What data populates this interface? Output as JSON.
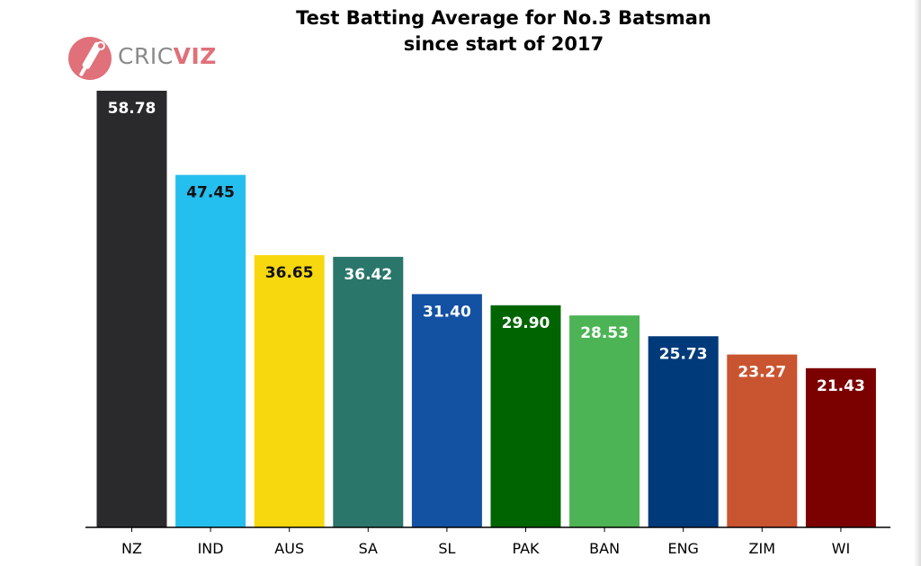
{
  "chart_data": {
    "type": "bar",
    "title": "Test Batting Average for No.3 Batsman",
    "subtitle": "since start of 2017",
    "categories": [
      "NZ",
      "IND",
      "AUS",
      "SA",
      "SL",
      "PAK",
      "BAN",
      "ENG",
      "ZIM",
      "WI"
    ],
    "values": [
      58.78,
      47.45,
      36.65,
      36.42,
      31.4,
      29.9,
      28.53,
      25.73,
      23.27,
      21.43
    ],
    "value_labels": [
      "58.78",
      "47.45",
      "36.65",
      "36.42",
      "31.40",
      "29.90",
      "28.53",
      "25.73",
      "23.27",
      "21.43"
    ],
    "colors": [
      "#2a2a2c",
      "#25bfef",
      "#f7d80f",
      "#2a766b",
      "#1351a3",
      "#006400",
      "#4cb454",
      "#003a7a",
      "#c95430",
      "#7b0000"
    ],
    "label_colors": [
      "#ffffff",
      "#111111",
      "#111111",
      "#ffffff",
      "#ffffff",
      "#ffffff",
      "#ffffff",
      "#ffffff",
      "#ffffff",
      "#ffffff"
    ],
    "ylim": [
      0,
      58.78
    ],
    "xlabel": "",
    "ylabel": "",
    "grid": false,
    "legend": "none"
  },
  "logo": {
    "text_part1": "CRIC",
    "text_part2": "VIZ",
    "icon": "cricket-bat-ball-icon",
    "icon_color": "#e0707a",
    "text_color": "#8a8a8a"
  }
}
